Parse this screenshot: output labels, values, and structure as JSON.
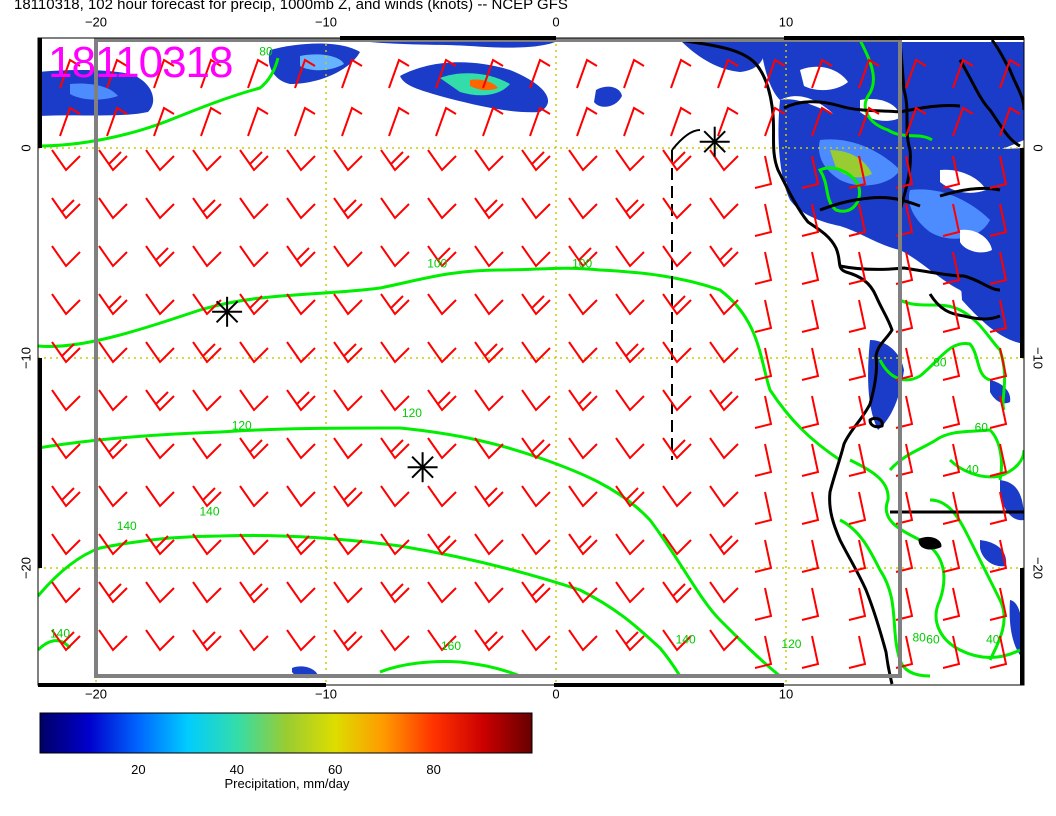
{
  "title": "18110318, 102 hour forecast for precip, 1000mb Z, and winds (knots) -- NCEP GFS",
  "stamp": "18110318",
  "axes": {
    "top_lon_labels": [
      "−20",
      "−10",
      "0",
      "10"
    ],
    "bottom_lon_labels": [
      "−20",
      "−10",
      "0",
      "10"
    ],
    "left_lat_labels": [
      "0",
      "−10",
      "−20"
    ],
    "right_lat_labels": [
      "0",
      "−10",
      "−20"
    ]
  },
  "contour_labels": [
    {
      "text": "100",
      "lon": -5.6,
      "lat": -5.7
    },
    {
      "text": "100",
      "lon": 0.7,
      "lat": -5.7
    },
    {
      "text": "120",
      "lon": -14.1,
      "lat": -13.4
    },
    {
      "text": "120",
      "lon": -6.7,
      "lat": -12.8
    },
    {
      "text": "140",
      "lon": -19.1,
      "lat": -18.2
    },
    {
      "text": "140",
      "lon": -15.5,
      "lat": -17.5
    },
    {
      "text": "140",
      "lon": -22.0,
      "lat": -23.3
    },
    {
      "text": "160",
      "lon": -5.0,
      "lat": -23.9
    },
    {
      "text": "140",
      "lon": 5.2,
      "lat": -23.6
    },
    {
      "text": "120",
      "lon": 9.8,
      "lat": -23.8
    },
    {
      "text": "80",
      "lon": 16.4,
      "lat": -10.4
    },
    {
      "text": "60",
      "lon": 18.2,
      "lat": -13.5
    },
    {
      "text": "40",
      "lon": 17.8,
      "lat": -15.5
    },
    {
      "text": "80",
      "lon": 15.5,
      "lat": -23.5
    },
    {
      "text": "60",
      "lon": 16.1,
      "lat": -23.6
    },
    {
      "text": "40",
      "lon": 18.7,
      "lat": -23.6
    },
    {
      "text": "80",
      "lon": -12.9,
      "lat": 4.4
    }
  ],
  "colorbar": {
    "ticks": [
      "20",
      "40",
      "60",
      "80"
    ],
    "tick_values": [
      20,
      40,
      60,
      80
    ],
    "min": 0,
    "max": 100,
    "label": "Precipitation, mm/day"
  },
  "colors": {
    "wind_barb": "#ff0000",
    "contour": "#00ff00",
    "contour_label": "#00cc00",
    "coast": "#000000",
    "grid": "#cccc00",
    "frame": "#808080",
    "stamp": "#ff00ff",
    "precip_scale": [
      "#000066",
      "#0000cc",
      "#0066ff",
      "#00ccff",
      "#33ddaa",
      "#99cc33",
      "#dddd00",
      "#ff9900",
      "#ff3300",
      "#cc0000",
      "#660000"
    ]
  },
  "markers": [
    {
      "name": "storm-marker",
      "lon": -14.3,
      "lat": -7.8
    },
    {
      "name": "storm-marker",
      "lon": -5.8,
      "lat": -15.2
    },
    {
      "name": "storm-marker",
      "lon": 6.9,
      "lat": 0.3
    }
  ]
}
